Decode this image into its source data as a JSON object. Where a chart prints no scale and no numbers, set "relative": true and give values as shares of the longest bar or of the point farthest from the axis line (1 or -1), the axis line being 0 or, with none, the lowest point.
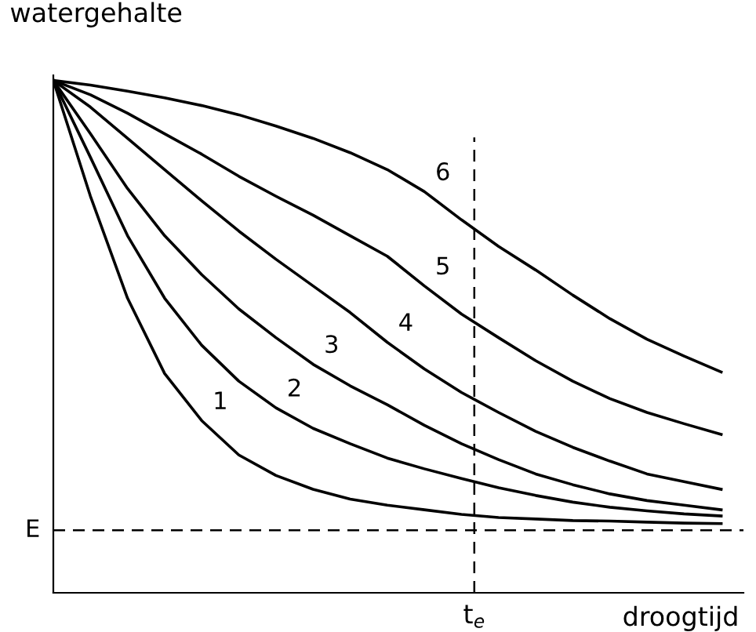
{
  "chart_data": {
    "type": "line",
    "relative": true,
    "xlabel": "droogtijd",
    "ylabel": "watergehalte",
    "categories": [
      null,
      null,
      null,
      null,
      null,
      null,
      null,
      null,
      null,
      null,
      null,
      null,
      null,
      null,
      null,
      null,
      null,
      null,
      null
    ],
    "legend": false,
    "marker": "none",
    "line_style": "solid",
    "annotations": [
      "t$_{e}$"
    ],
    "series": [
      {
        "name": "1",
        "color": "#000000",
        "values": [
          1,
          0.774,
          0.575,
          0.428,
          0.336,
          0.269,
          0.229,
          0.202,
          0.183,
          0.171,
          0.162,
          0.153,
          0.147,
          0.144,
          0.141,
          0.14,
          0.138,
          0.136,
          0.135
        ]
      },
      {
        "name": "2",
        "color": "#000000",
        "values": [
          1,
          0.85,
          0.697,
          0.575,
          0.483,
          0.413,
          0.361,
          0.321,
          0.291,
          0.263,
          0.242,
          0.223,
          0.205,
          0.19,
          0.177,
          0.167,
          0.16,
          0.154,
          0.15
        ]
      },
      {
        "name": "3",
        "color": "#000000",
        "values": [
          1,
          0.896,
          0.789,
          0.697,
          0.621,
          0.554,
          0.498,
          0.446,
          0.404,
          0.367,
          0.327,
          0.291,
          0.26,
          0.232,
          0.211,
          0.193,
          0.18,
          0.171,
          0.162
        ]
      },
      {
        "name": "4",
        "color": "#000000",
        "values": [
          1,
          0.948,
          0.887,
          0.826,
          0.765,
          0.706,
          0.651,
          0.599,
          0.547,
          0.489,
          0.437,
          0.391,
          0.352,
          0.315,
          0.284,
          0.257,
          0.232,
          0.217,
          0.202
        ]
      },
      {
        "name": "5",
        "color": "#000000",
        "values": [
          1,
          0.972,
          0.936,
          0.896,
          0.856,
          0.813,
          0.774,
          0.737,
          0.697,
          0.657,
          0.599,
          0.544,
          0.498,
          0.453,
          0.413,
          0.379,
          0.352,
          0.33,
          0.309
        ]
      },
      {
        "name": "6",
        "color": "#000000",
        "values": [
          1,
          0.991,
          0.979,
          0.966,
          0.951,
          0.933,
          0.911,
          0.887,
          0.859,
          0.826,
          0.783,
          0.728,
          0.676,
          0.63,
          0.581,
          0.535,
          0.495,
          0.462,
          0.431
        ]
      }
    ],
    "ref_lines": [
      {
        "axis": "y",
        "value": 0.122,
        "label": "E",
        "color": "#000000",
        "line_style": "dashed"
      }
    ]
  }
}
